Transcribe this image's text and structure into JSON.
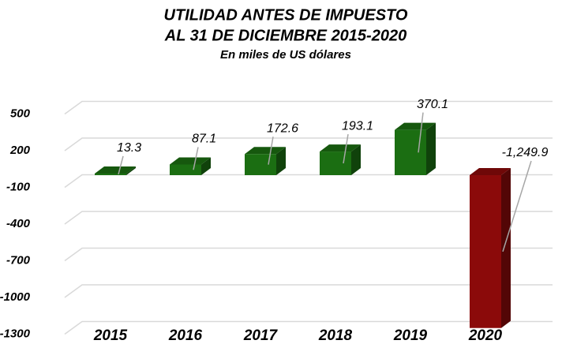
{
  "chart_data": {
    "type": "bar3d",
    "title": "UTILIDAD ANTES DE IMPUESTO",
    "title_line2": "AL 31 DE DICIEMBRE 2015-2020",
    "subtitle": "En miles de US dólares",
    "categories": [
      "2015",
      "2016",
      "2017",
      "2018",
      "2019",
      "2020"
    ],
    "values": [
      13.3,
      87.1,
      172.6,
      193.1,
      370.1,
      -1249.9
    ],
    "value_labels": [
      "13.3",
      "87.1",
      "172.6",
      "193.1",
      "370.1",
      "-1,249.9"
    ],
    "color": "#1b6e12",
    "negative_color": "#8b0a0a",
    "ylim": [
      -1300,
      500
    ],
    "yticks": [
      500,
      200,
      -100,
      -400,
      -700,
      -1000,
      -1300
    ],
    "grid": true
  }
}
